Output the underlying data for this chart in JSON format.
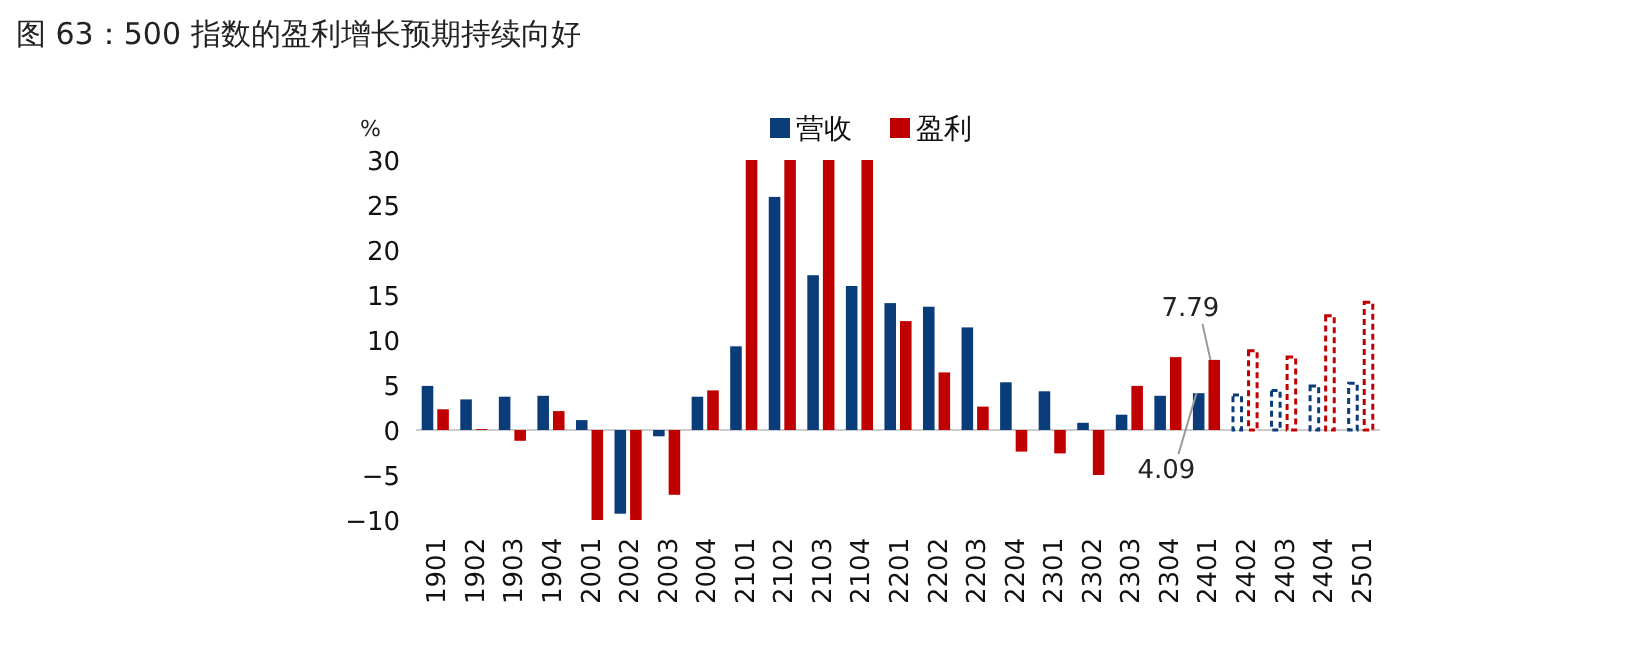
{
  "chart_data": {
    "type": "bar",
    "title": "图 63：500 指数的盈利增长预期持续向好",
    "ylabel": "%",
    "categories": [
      "1901",
      "1902",
      "1903",
      "1904",
      "2001",
      "2002",
      "2003",
      "2004",
      "2101",
      "2102",
      "2103",
      "2104",
      "2201",
      "2202",
      "2203",
      "2204",
      "2301",
      "2302",
      "2303",
      "2304",
      "2401",
      "2402",
      "2403",
      "2404",
      "2501"
    ],
    "series": [
      {
        "name": "营收",
        "color": "#0b3c7a",
        "values": [
          4.9,
          3.4,
          3.7,
          3.8,
          1.1,
          -9.3,
          -0.7,
          3.7,
          9.3,
          25.9,
          17.2,
          16.0,
          14.1,
          13.7,
          11.4,
          5.3,
          4.3,
          0.8,
          1.7,
          3.8,
          4.09,
          null,
          null,
          null,
          null
        ]
      },
      {
        "name": "盈利",
        "color": "#c00000",
        "values": [
          2.3,
          0.1,
          -1.2,
          2.1,
          -10,
          -10,
          -7.2,
          4.4,
          30,
          30,
          30,
          30,
          12.1,
          6.4,
          2.6,
          -2.4,
          -2.6,
          -5.0,
          4.9,
          8.1,
          7.79,
          null,
          null,
          null,
          null
        ]
      },
      {
        "color": "#0b3c7a",
        "line_style": "dashed",
        "values": [
          null,
          null,
          null,
          null,
          null,
          null,
          null,
          null,
          null,
          null,
          null,
          null,
          null,
          null,
          null,
          null,
          null,
          null,
          null,
          null,
          null,
          3.9,
          4.4,
          4.9,
          5.2
        ]
      },
      {
        "color": "#c00000",
        "line_style": "dashed",
        "values": [
          null,
          null,
          null,
          null,
          null,
          null,
          null,
          null,
          null,
          null,
          null,
          null,
          null,
          null,
          null,
          null,
          null,
          null,
          null,
          null,
          null,
          8.8,
          8.1,
          12.7,
          14.2
        ]
      }
    ],
    "ylim": [
      -10,
      30
    ],
    "yticks": [
      -10,
      -5,
      0,
      5,
      10,
      15,
      20,
      25,
      30
    ],
    "legend": "top",
    "annotations": [
      {
        "text": "7.79",
        "x": "2401",
        "y": 7.79
      },
      {
        "text": "4.09",
        "x": "2401",
        "y": 4.09
      }
    ]
  }
}
